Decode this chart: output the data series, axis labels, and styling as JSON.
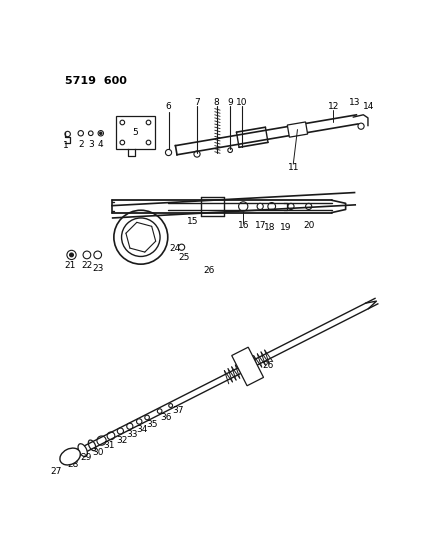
{
  "title": "5719  600",
  "bg_color": "#ffffff",
  "line_color": "#1a1a1a",
  "text_color": "#000000",
  "title_fontsize": 8,
  "label_fontsize": 6.5
}
